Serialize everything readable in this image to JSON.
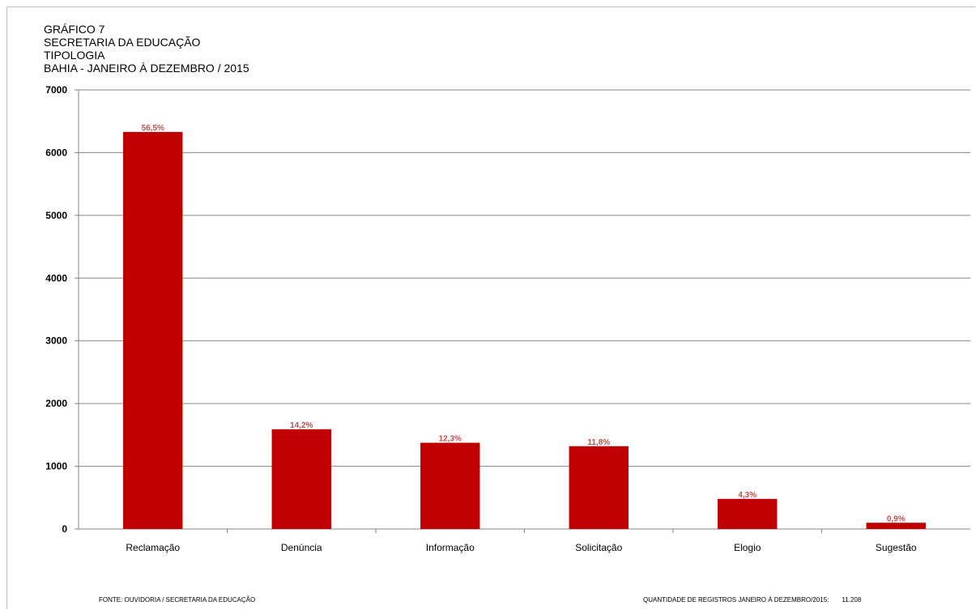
{
  "chart_data": {
    "type": "bar",
    "title_lines": [
      "GRÁFICO 7",
      "SECRETARIA  DA EDUCAÇÃO",
      "TIPOLOGIA",
      "BAHIA - JANEIRO À DEZEMBRO / 2015"
    ],
    "categories": [
      "Reclamação",
      "Denúncia",
      "Informação",
      "Solicitação",
      "Elogio",
      "Sugestão"
    ],
    "values": [
      6330,
      1590,
      1375,
      1320,
      480,
      100
    ],
    "data_labels": [
      "56,5%",
      "14,2%",
      "12,3%",
      "11,8%",
      "4,3%",
      "0,9%"
    ],
    "ylim": [
      0,
      7000
    ],
    "yticks": [
      0,
      1000,
      2000,
      3000,
      4000,
      5000,
      6000,
      7000
    ],
    "xlabel": "",
    "ylabel": "",
    "grid": true,
    "bar_color": "#c00000",
    "label_color": "#c0504d"
  },
  "footer": {
    "source": "FONTE: OUVIDORIA / SECRETARIA DA EDUCAÇÃO",
    "total_label": "QUANTIDADE DE REGISTROS JANEIRO À DEZEMBRO/2015:",
    "total_value": "11.208"
  }
}
